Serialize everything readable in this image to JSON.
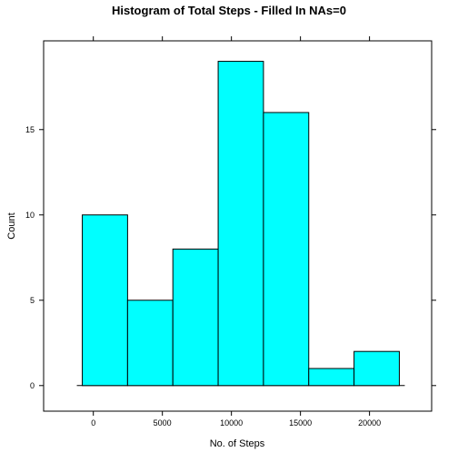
{
  "chart_data": {
    "type": "bar",
    "title": "Histogram of Total Steps - Filled In NAs=0",
    "xlabel": "No. of Steps",
    "ylabel": "Count",
    "bin_edges": [
      -800,
      2480,
      5760,
      9040,
      12320,
      15600,
      18880,
      22160
    ],
    "values": [
      10,
      5,
      8,
      19,
      16,
      1,
      2
    ],
    "xlim": [
      -3600,
      24500
    ],
    "ylim": [
      -1.5,
      20.2
    ],
    "x_ticks": [
      0,
      5000,
      10000,
      15000,
      20000
    ],
    "y_ticks": [
      0,
      5,
      10,
      15
    ],
    "x_tick_labels": [
      "0",
      "5000",
      "10000",
      "15000",
      "20000"
    ],
    "y_tick_labels": [
      "0",
      "5",
      "10",
      "15"
    ],
    "grid": false,
    "legend": "none",
    "colors": {
      "bar_fill": "#00ffff",
      "bar_stroke": "#000000",
      "frame": "#000000",
      "background": "#ffffff"
    }
  }
}
